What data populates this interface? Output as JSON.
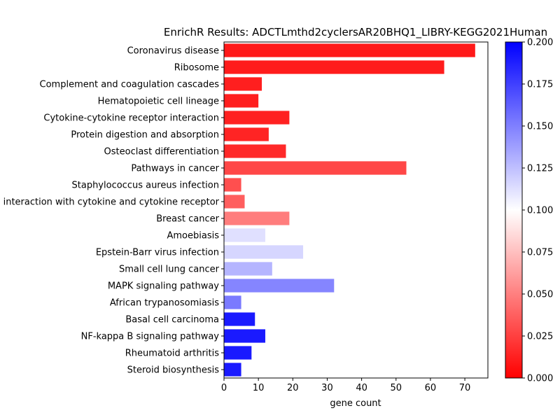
{
  "chart_data": {
    "type": "bar",
    "orientation": "horizontal",
    "title": "EnrichR Results: ADCTLmthd2cyclersAR20BHQ1_LIBRY-KEGG2021Human",
    "xlabel": "gene count",
    "ylabel": "",
    "xlim": [
      0,
      76.7
    ],
    "xticks": [
      "0",
      "10",
      "20",
      "30",
      "40",
      "50",
      "60",
      "70"
    ],
    "xtick_values": [
      0,
      10,
      20,
      30,
      40,
      50,
      60,
      70
    ],
    "grid": false,
    "categories": [
      "Coronavirus disease",
      "Ribosome",
      "Complement and coagulation cascades",
      "Hematopoietic cell lineage",
      "Cytokine-cytokine receptor interaction",
      "Protein digestion and absorption",
      "Osteoclast differentiation",
      "Pathways in cancer",
      "Staphylococcus aureus infection",
      "Viral protein interaction with cytokine and cytokine receptor",
      "Breast cancer",
      "Amoebiasis",
      "Epstein-Barr virus infection",
      "Small cell lung cancer",
      "MAPK signaling pathway",
      "African trypanosomiasis",
      "Basal cell carcinoma",
      "NF-kappa B signaling pathway",
      "Rheumatoid arthritis",
      "Steroid biosynthesis"
    ],
    "values": [
      73,
      64,
      11,
      10,
      19,
      13,
      18,
      53,
      5,
      6,
      19,
      12,
      23,
      14,
      32,
      5,
      9,
      12,
      8,
      5
    ],
    "color_values": [
      0.01,
      0.011,
      0.012,
      0.012,
      0.013,
      0.014,
      0.016,
      0.028,
      0.031,
      0.037,
      0.049,
      0.112,
      0.116,
      0.129,
      0.148,
      0.152,
      0.19,
      0.19,
      0.19,
      0.19
    ],
    "colorbar": {
      "cmap": "bwr_r",
      "range": [
        0.0,
        0.2
      ],
      "ticks": [
        "0.000",
        "0.025",
        "0.050",
        "0.075",
        "0.100",
        "0.125",
        "0.150",
        "0.175",
        "0.200"
      ],
      "tick_values": [
        0.0,
        0.025,
        0.05,
        0.075,
        0.1,
        0.125,
        0.15,
        0.175,
        0.2
      ],
      "color_low": "#ff0000",
      "color_mid": "#ffffff",
      "color_high": "#0000ff"
    }
  }
}
